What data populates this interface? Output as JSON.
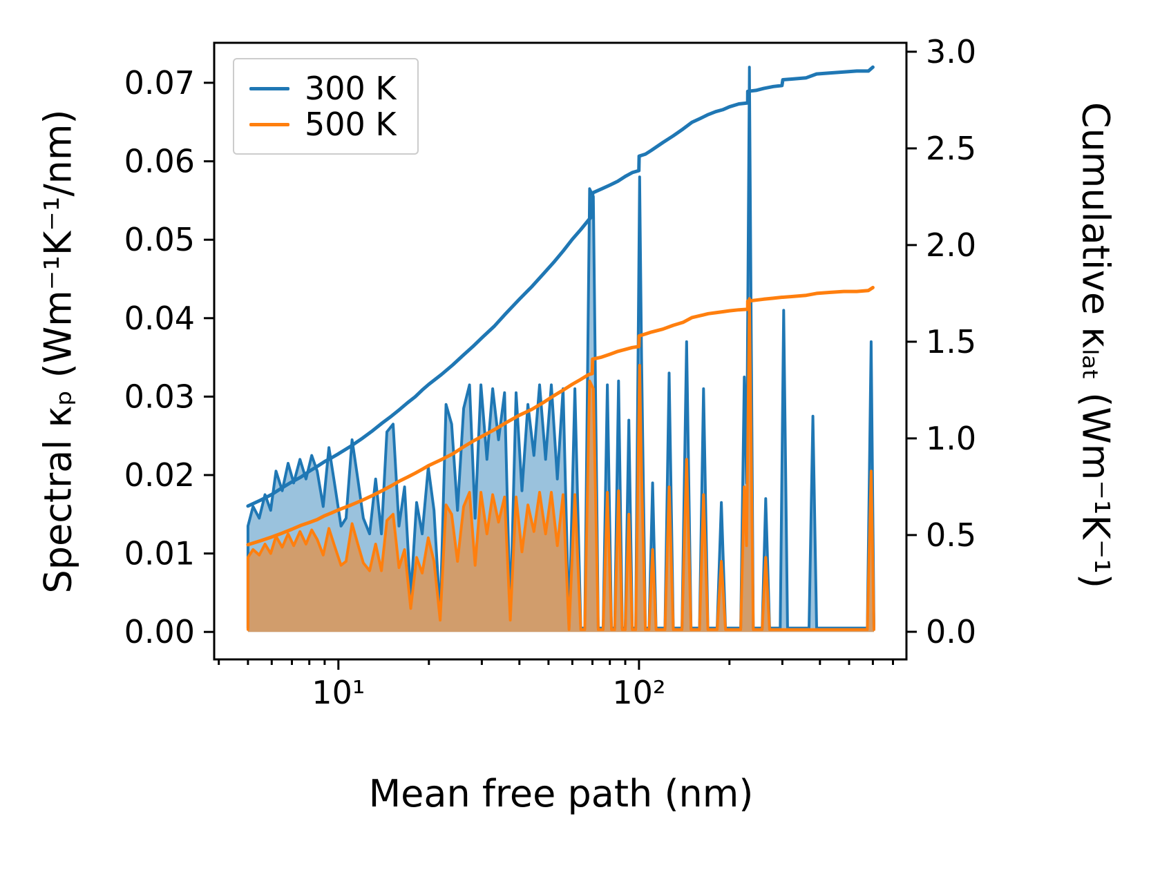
{
  "figure": {
    "xlabel": "Mean free path (nm)",
    "ylabel_left": "Spectral κₚ (Wm⁻¹K⁻¹/nm)",
    "ylabel_right": "Cumulative κₗₐₜ (Wm⁻¹K⁻¹)",
    "background": "#ffffff",
    "axis_color": "#000000"
  },
  "legend": {
    "items": [
      {
        "label": "300 K",
        "color": "#1f77b4"
      },
      {
        "label": "500 K",
        "color": "#ff7f0e"
      }
    ]
  },
  "chart_data": {
    "type": "line",
    "x_scale": "log",
    "xlabel": "Mean free path (nm)",
    "ylabel_left": "Spectral κ_p (Wm^-1 K^-1 / nm)",
    "ylabel_right": "Cumulative κ_lat (Wm^-1 K^-1)",
    "xlim": [
      3.86,
      776
    ],
    "ylim_left": [
      -0.0035,
      0.0751
    ],
    "ylim_right": [
      -0.143,
      3.046
    ],
    "x_ticks_major": [
      10,
      100
    ],
    "x_tick_labels": [
      "10¹",
      "10²"
    ],
    "x_ticks_minor": [
      4,
      5,
      6,
      7,
      8,
      9,
      20,
      30,
      40,
      50,
      60,
      70,
      80,
      90,
      200,
      300,
      400,
      500,
      600,
      700
    ],
    "y_ticks_left": [
      0.0,
      0.01,
      0.02,
      0.03,
      0.04,
      0.05,
      0.06,
      0.07
    ],
    "y_tick_labels_left": [
      "0.00",
      "0.01",
      "0.02",
      "0.03",
      "0.04",
      "0.05",
      "0.06",
      "0.07"
    ],
    "y_ticks_right": [
      0.0,
      0.5,
      1.0,
      1.5,
      2.0,
      2.5,
      3.0
    ],
    "y_tick_labels_right": [
      "0.0",
      "0.5",
      "1.0",
      "1.5",
      "2.0",
      "2.5",
      "3.0"
    ],
    "x_spectral": [
      5.0,
      5.0,
      5.2,
      5.45,
      5.7,
      5.95,
      6.2,
      6.5,
      6.8,
      7.1,
      7.45,
      7.8,
      8.15,
      8.5,
      8.9,
      9.3,
      9.7,
      10.2,
      10.6,
      11.1,
      11.6,
      12.1,
      12.7,
      13.3,
      13.9,
      14.5,
      15.2,
      15.9,
      16.6,
      17.4,
      18.2,
      19.0,
      19.9,
      20.8,
      21.8,
      22.8,
      23.8,
      24.9,
      26.1,
      27.3,
      28.5,
      29.8,
      31.2,
      32.6,
      34.1,
      35.7,
      37.3,
      39.0,
      40.8,
      42.7,
      44.7,
      46.7,
      48.9,
      51.1,
      53.5,
      55.9,
      58.5,
      61.2,
      64.0,
      66.0,
      68.5,
      70.5,
      73.2,
      76.0,
      78.5,
      81.0,
      83.0,
      85.5,
      88.0,
      90.0,
      92.5,
      95.0,
      97.5,
      100.5,
      102.0,
      105.0,
      108.0,
      111.0,
      114.0,
      122.0,
      126.0,
      130.0,
      139.0,
      144.0,
      149.0,
      159.0,
      164.0,
      169.5,
      182.0,
      188.0,
      194.0,
      218.0,
      224.0,
      228.0,
      233.0,
      240.0,
      257.0,
      264.0,
      272.0,
      295.0,
      303.0,
      312.0,
      368.0,
      379.0,
      390.0,
      575.0,
      592.0,
      605.0
    ],
    "x_cumulative": [
      5,
      5.5,
      6,
      6.5,
      7,
      7.5,
      8,
      8.5,
      9,
      9.5,
      10,
      11,
      12,
      13,
      14,
      15,
      16,
      17,
      18,
      19,
      20,
      22,
      24,
      26,
      28,
      30,
      33,
      36,
      40,
      44,
      48,
      52,
      56,
      60,
      64,
      68,
      69.9,
      70.1,
      75,
      80,
      85,
      90,
      95,
      99.9,
      100.1,
      105,
      110,
      120,
      130,
      140,
      150,
      160,
      170,
      180,
      190,
      200,
      215,
      229.9,
      230.1,
      245,
      260,
      280,
      299,
      301,
      330,
      360,
      390,
      430,
      480,
      530,
      580,
      600
    ],
    "series": [
      {
        "name": "spectral-300K",
        "label": "300 K",
        "axis": "left",
        "x_key": "x_spectral",
        "color": "#1f77b4",
        "fill": true,
        "fill_opacity": 0.45,
        "width": 4,
        "values": [
          0.0005,
          0.0135,
          0.016,
          0.0145,
          0.0175,
          0.0155,
          0.0205,
          0.018,
          0.0215,
          0.019,
          0.022,
          0.0195,
          0.0225,
          0.0205,
          0.016,
          0.0235,
          0.019,
          0.0135,
          0.0145,
          0.0245,
          0.0195,
          0.0145,
          0.0125,
          0.0195,
          0.0125,
          0.0255,
          0.0265,
          0.0135,
          0.0185,
          0.0045,
          0.0165,
          0.0125,
          0.021,
          0.0155,
          0.002,
          0.029,
          0.0265,
          0.0155,
          0.0285,
          0.0315,
          0.0145,
          0.0315,
          0.022,
          0.031,
          0.0245,
          0.0305,
          0.002,
          0.0305,
          0.018,
          0.029,
          0.0225,
          0.0315,
          0.022,
          0.0315,
          0.0195,
          0.031,
          0.0005,
          0.031,
          0.0005,
          0.0005,
          0.0565,
          0.0555,
          0.0005,
          0.0005,
          0.0315,
          0.0005,
          0.0005,
          0.032,
          0.0005,
          0.0005,
          0.027,
          0.0005,
          0.0005,
          0.058,
          0.035,
          0.0005,
          0.0005,
          0.019,
          0.0005,
          0.0005,
          0.033,
          0.0005,
          0.0005,
          0.037,
          0.0005,
          0.0005,
          0.031,
          0.0005,
          0.0005,
          0.0165,
          0.0005,
          0.0005,
          0.0325,
          0.019,
          0.072,
          0.0005,
          0.0005,
          0.017,
          0.0005,
          0.0005,
          0.041,
          0.0005,
          0.0005,
          0.0275,
          0.0005,
          0.0005,
          0.037,
          0.0005
        ]
      },
      {
        "name": "spectral-500K",
        "label": "500 K",
        "axis": "left",
        "x_key": "x_spectral",
        "color": "#ff7f0e",
        "fill": true,
        "fill_opacity": 0.55,
        "width": 4,
        "values": [
          0.0003,
          0.0095,
          0.0105,
          0.0098,
          0.0112,
          0.01,
          0.0122,
          0.0108,
          0.0125,
          0.011,
          0.0128,
          0.0112,
          0.013,
          0.0118,
          0.0098,
          0.0132,
          0.011,
          0.0085,
          0.009,
          0.0138,
          0.0112,
          0.0088,
          0.0078,
          0.0112,
          0.0078,
          0.0142,
          0.015,
          0.0082,
          0.0105,
          0.003,
          0.0095,
          0.0075,
          0.012,
          0.009,
          0.0015,
          0.0162,
          0.015,
          0.009,
          0.016,
          0.0178,
          0.0085,
          0.0178,
          0.0125,
          0.0175,
          0.014,
          0.0172,
          0.0015,
          0.0172,
          0.0102,
          0.0162,
          0.0128,
          0.0178,
          0.0125,
          0.0178,
          0.011,
          0.0175,
          0.0003,
          0.0175,
          0.0003,
          0.0003,
          0.032,
          0.031,
          0.0003,
          0.0003,
          0.0178,
          0.0003,
          0.0003,
          0.018,
          0.0003,
          0.0003,
          0.015,
          0.0003,
          0.0003,
          0.034,
          0.02,
          0.0003,
          0.0003,
          0.0105,
          0.0003,
          0.0003,
          0.0185,
          0.0003,
          0.0003,
          0.022,
          0.0003,
          0.0003,
          0.0175,
          0.0003,
          0.0003,
          0.009,
          0.0003,
          0.0003,
          0.0185,
          0.011,
          0.0425,
          0.0003,
          0.0003,
          0.0095,
          0.0003,
          0.0003,
          0.0003,
          0.0003,
          0.0003,
          0.0003,
          0.0003,
          0.0003,
          0.0205,
          0.0003
        ]
      },
      {
        "name": "cumulative-300K",
        "label": "300 K",
        "axis": "right",
        "x_key": "x_cumulative",
        "color": "#1f77b4",
        "fill": false,
        "width": 5,
        "values": [
          0.65,
          0.68,
          0.71,
          0.745,
          0.775,
          0.8,
          0.83,
          0.855,
          0.88,
          0.9,
          0.92,
          0.96,
          1.0,
          1.04,
          1.08,
          1.115,
          1.15,
          1.185,
          1.215,
          1.25,
          1.28,
          1.33,
          1.38,
          1.43,
          1.475,
          1.52,
          1.58,
          1.645,
          1.72,
          1.785,
          1.85,
          1.91,
          1.97,
          2.03,
          2.08,
          2.13,
          2.15,
          2.27,
          2.29,
          2.31,
          2.33,
          2.355,
          2.375,
          2.385,
          2.46,
          2.47,
          2.49,
          2.53,
          2.565,
          2.6,
          2.635,
          2.655,
          2.675,
          2.69,
          2.7,
          2.715,
          2.73,
          2.735,
          2.795,
          2.8,
          2.81,
          2.82,
          2.825,
          2.855,
          2.86,
          2.865,
          2.885,
          2.89,
          2.895,
          2.9,
          2.9,
          2.92
        ]
      },
      {
        "name": "cumulative-500K",
        "label": "500 K",
        "axis": "right",
        "x_key": "x_cumulative",
        "color": "#ff7f0e",
        "fill": false,
        "width": 5,
        "values": [
          0.45,
          0.47,
          0.49,
          0.51,
          0.53,
          0.55,
          0.565,
          0.58,
          0.6,
          0.615,
          0.63,
          0.655,
          0.68,
          0.705,
          0.73,
          0.755,
          0.78,
          0.8,
          0.82,
          0.84,
          0.86,
          0.89,
          0.92,
          0.955,
          0.985,
          1.01,
          1.045,
          1.08,
          1.12,
          1.15,
          1.185,
          1.22,
          1.25,
          1.28,
          1.305,
          1.33,
          1.335,
          1.41,
          1.42,
          1.435,
          1.45,
          1.46,
          1.47,
          1.475,
          1.53,
          1.54,
          1.55,
          1.565,
          1.585,
          1.6,
          1.625,
          1.635,
          1.645,
          1.65,
          1.655,
          1.66,
          1.665,
          1.668,
          1.71,
          1.715,
          1.72,
          1.725,
          1.73,
          1.73,
          1.735,
          1.74,
          1.75,
          1.755,
          1.76,
          1.76,
          1.765,
          1.78
        ]
      }
    ]
  }
}
